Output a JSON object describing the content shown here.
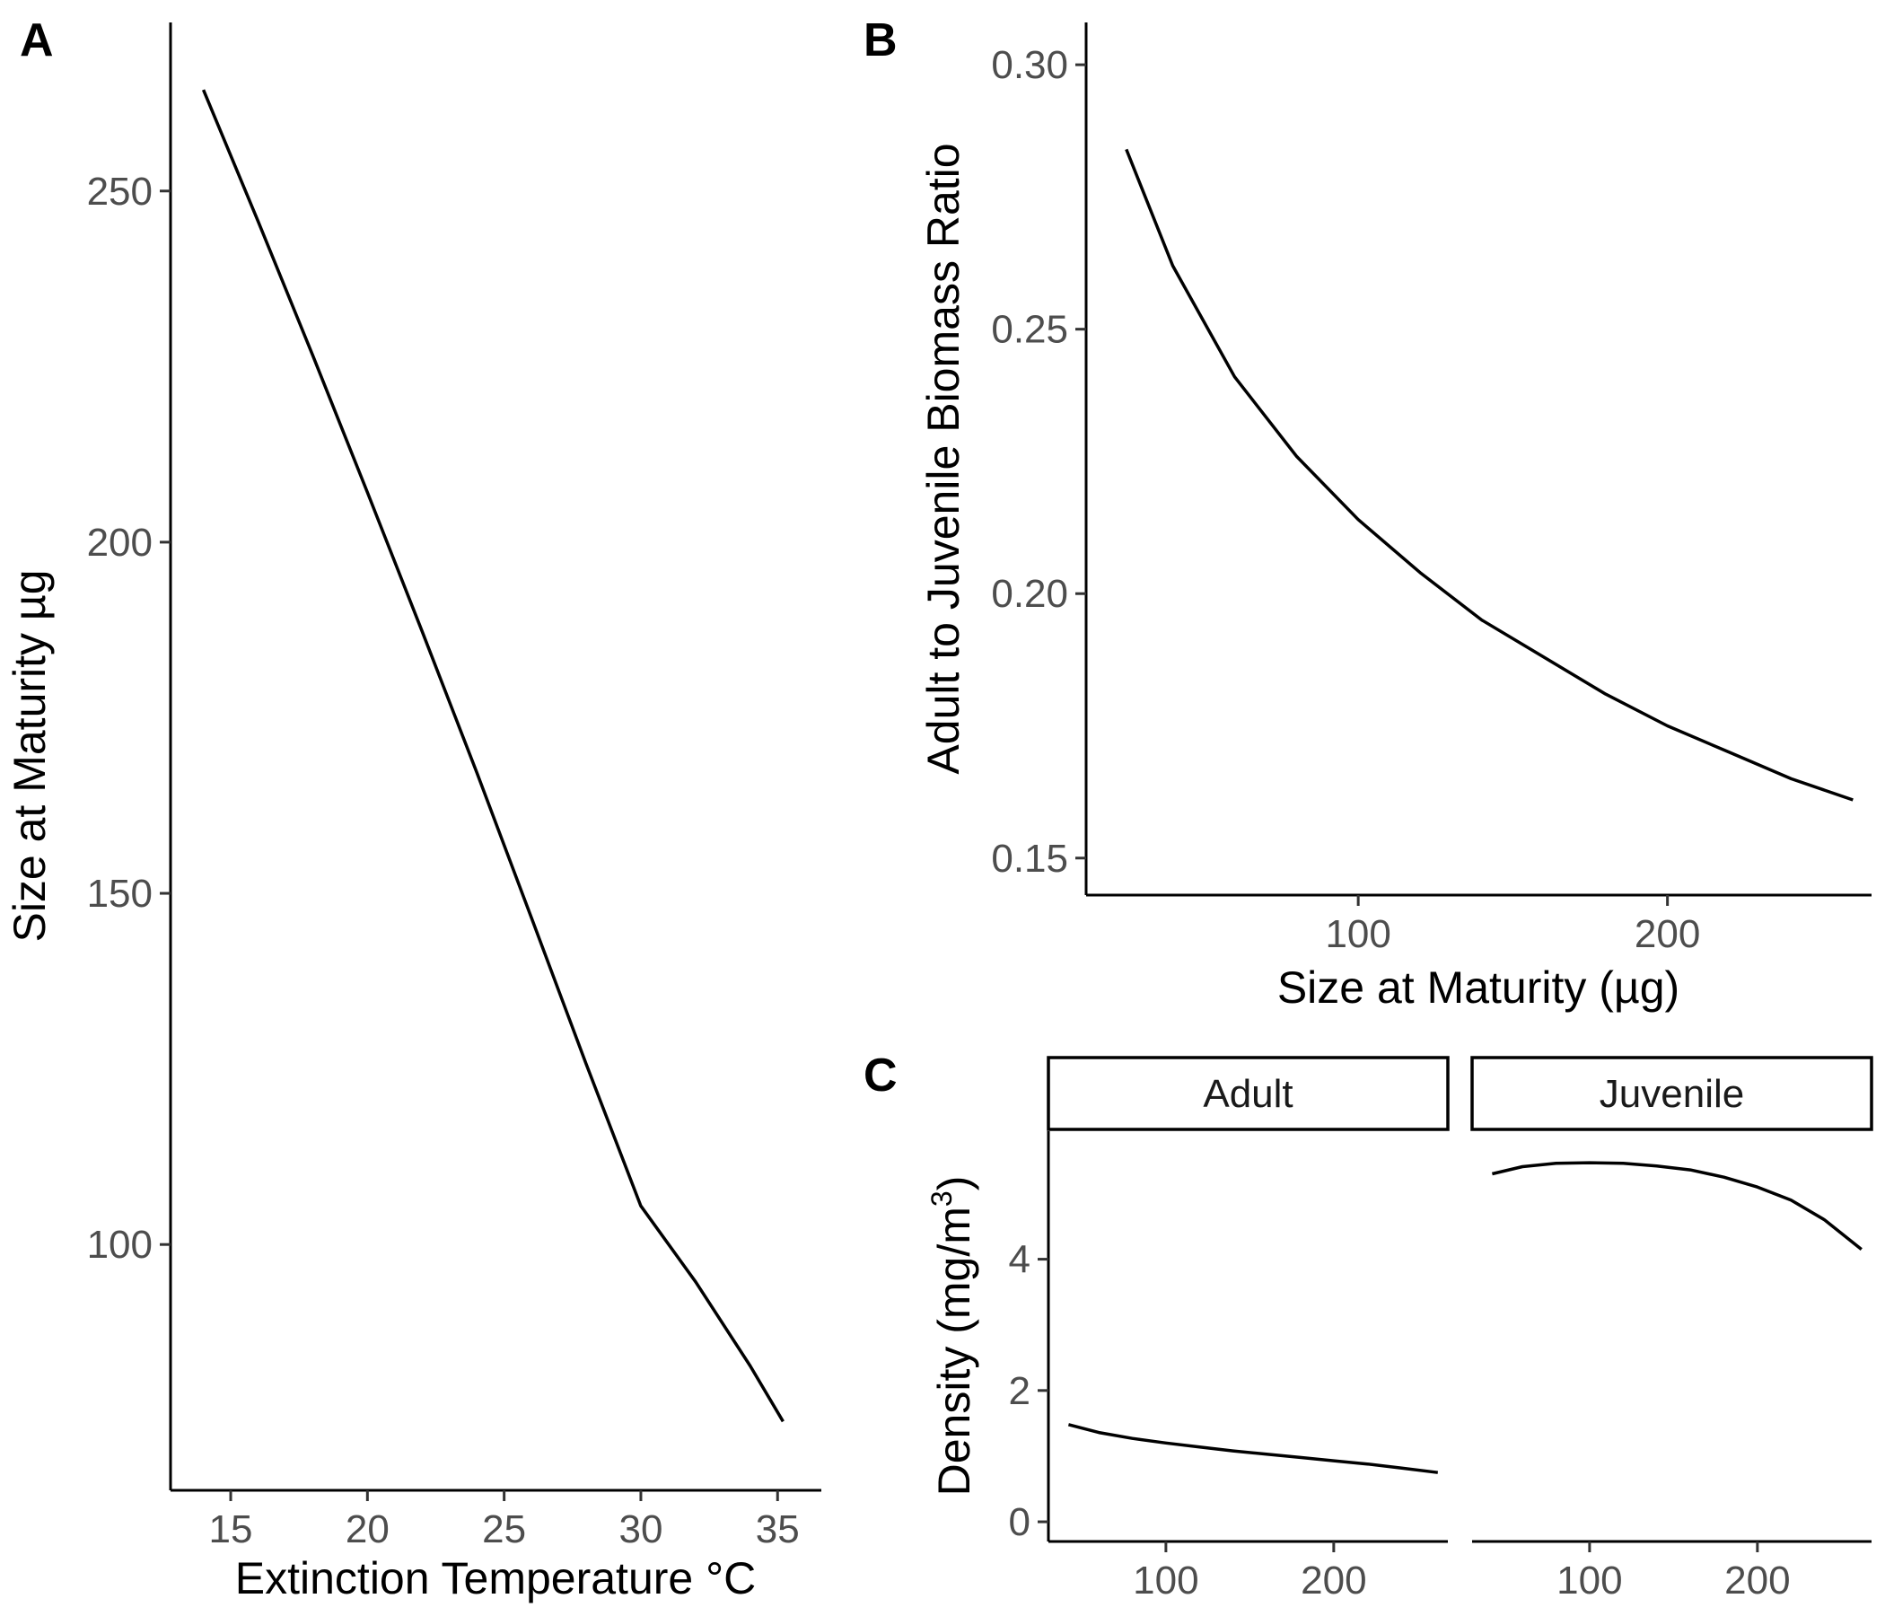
{
  "chart_data": [
    {
      "id": "A",
      "panel_label": "A",
      "type": "line",
      "title": "",
      "xlabel": "Extinction Temperature °C",
      "ylabel": "Size at Maturity µg",
      "xlim": [
        12.8,
        36.6
      ],
      "ylim": [
        65,
        274
      ],
      "xticks": [
        15,
        20,
        25,
        30,
        35
      ],
      "yticks": [
        100,
        150,
        200,
        250
      ],
      "grid": false,
      "series": [
        {
          "x": [
            14.0,
            16.0,
            18.0,
            20.0,
            22.0,
            24.0,
            26.0,
            28.0,
            30.0,
            32.0,
            34.0,
            35.2
          ],
          "y": [
            264.4,
            245.7,
            226.6,
            207.1,
            187.3,
            167.2,
            146.5,
            125.7,
            105.5,
            94.7,
            82.7,
            74.8
          ]
        }
      ]
    },
    {
      "id": "B",
      "panel_label": "B",
      "type": "line",
      "title": "",
      "xlabel": "Size at Maturity (µg)",
      "ylabel": "Adult to Juvenile Biomass Ratio",
      "xlim": [
        12,
        266
      ],
      "ylim": [
        0.143,
        0.308
      ],
      "xticks": [
        100,
        200
      ],
      "yticks": [
        0.15,
        0.2,
        0.25,
        0.3
      ],
      "ytick_labels": [
        "0.15",
        "0.20",
        "0.25",
        "0.30"
      ],
      "grid": false,
      "series": [
        {
          "x": [
            25,
            40,
            60,
            80,
            100,
            120,
            140,
            160,
            180,
            200,
            220,
            240,
            260
          ],
          "y": [
            0.284,
            0.262,
            0.241,
            0.226,
            0.214,
            0.204,
            0.195,
            0.188,
            0.181,
            0.175,
            0.17,
            0.165,
            0.161
          ]
        }
      ]
    },
    {
      "id": "C",
      "panel_label": "C",
      "type": "line",
      "title": "",
      "xlabel": "",
      "ylabel": "Density (mg/m",
      "ylabel_sup": "3",
      "ylabel_end": ")",
      "xlim": [
        30,
        268
      ],
      "ylim": [
        -0.3,
        5.95
      ],
      "xticks": [
        100,
        200
      ],
      "yticks": [
        0,
        2,
        4
      ],
      "grid": false,
      "facets": [
        {
          "strip": "Adult",
          "series": [
            {
              "x": [
                42,
                60,
                80,
                100,
                120,
                140,
                160,
                180,
                200,
                220,
                240,
                262
              ],
              "y": [
                1.48,
                1.36,
                1.27,
                1.2,
                1.14,
                1.08,
                1.03,
                0.98,
                0.93,
                0.88,
                0.82,
                0.75
              ]
            }
          ]
        },
        {
          "strip": "Juvenile",
          "series": [
            {
              "x": [
                42,
                60,
                80,
                100,
                120,
                140,
                160,
                180,
                200,
                220,
                240,
                262
              ],
              "y": [
                5.3,
                5.41,
                5.46,
                5.47,
                5.46,
                5.42,
                5.36,
                5.25,
                5.1,
                4.9,
                4.6,
                4.15
              ]
            }
          ]
        }
      ]
    }
  ]
}
